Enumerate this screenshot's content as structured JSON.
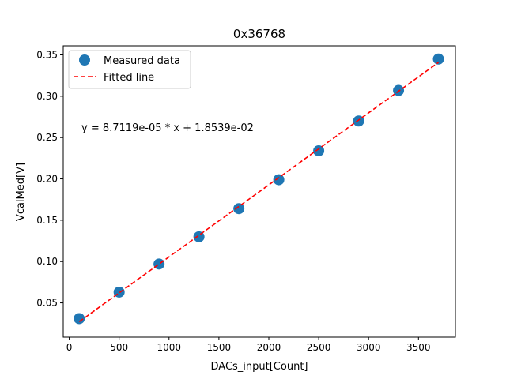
{
  "chart_data": {
    "type": "scatter",
    "title": "0x36768",
    "xlabel": "DACs_input[Count]",
    "ylabel": "VcalMed[V]",
    "xlim": [
      -60,
      3870
    ],
    "ylim": [
      0.0085,
      0.361
    ],
    "xticks": [
      0,
      500,
      1000,
      1500,
      2000,
      2500,
      3000,
      3500
    ],
    "xtick_labels": [
      "0",
      "500",
      "1000",
      "1500",
      "2000",
      "2500",
      "3000",
      "3500"
    ],
    "yticks": [
      0.05,
      0.1,
      0.15,
      0.2,
      0.25,
      0.3,
      0.35
    ],
    "ytick_labels": [
      "0.05",
      "0.10",
      "0.15",
      "0.20",
      "0.25",
      "0.30",
      "0.35"
    ],
    "grid": false,
    "legend_position": "top-left",
    "series": [
      {
        "name": "Measured data",
        "kind": "scatter",
        "color": "#1f77b4",
        "x": [
          100,
          500,
          900,
          1300,
          1700,
          2100,
          2500,
          2900,
          3300,
          3700
        ],
        "y": [
          0.031,
          0.063,
          0.097,
          0.13,
          0.164,
          0.199,
          0.234,
          0.27,
          0.307,
          0.345
        ]
      },
      {
        "name": "Fitted line",
        "kind": "line",
        "style": "dashed",
        "color": "#ff0000",
        "slope": 8.7119e-05,
        "intercept": 0.018539,
        "x": [
          100,
          3700
        ]
      }
    ],
    "annotations": [
      {
        "text": "y = 8.7119e-05 * x + 1.8539e-02",
        "x": 100,
        "y": 0.258
      }
    ]
  }
}
